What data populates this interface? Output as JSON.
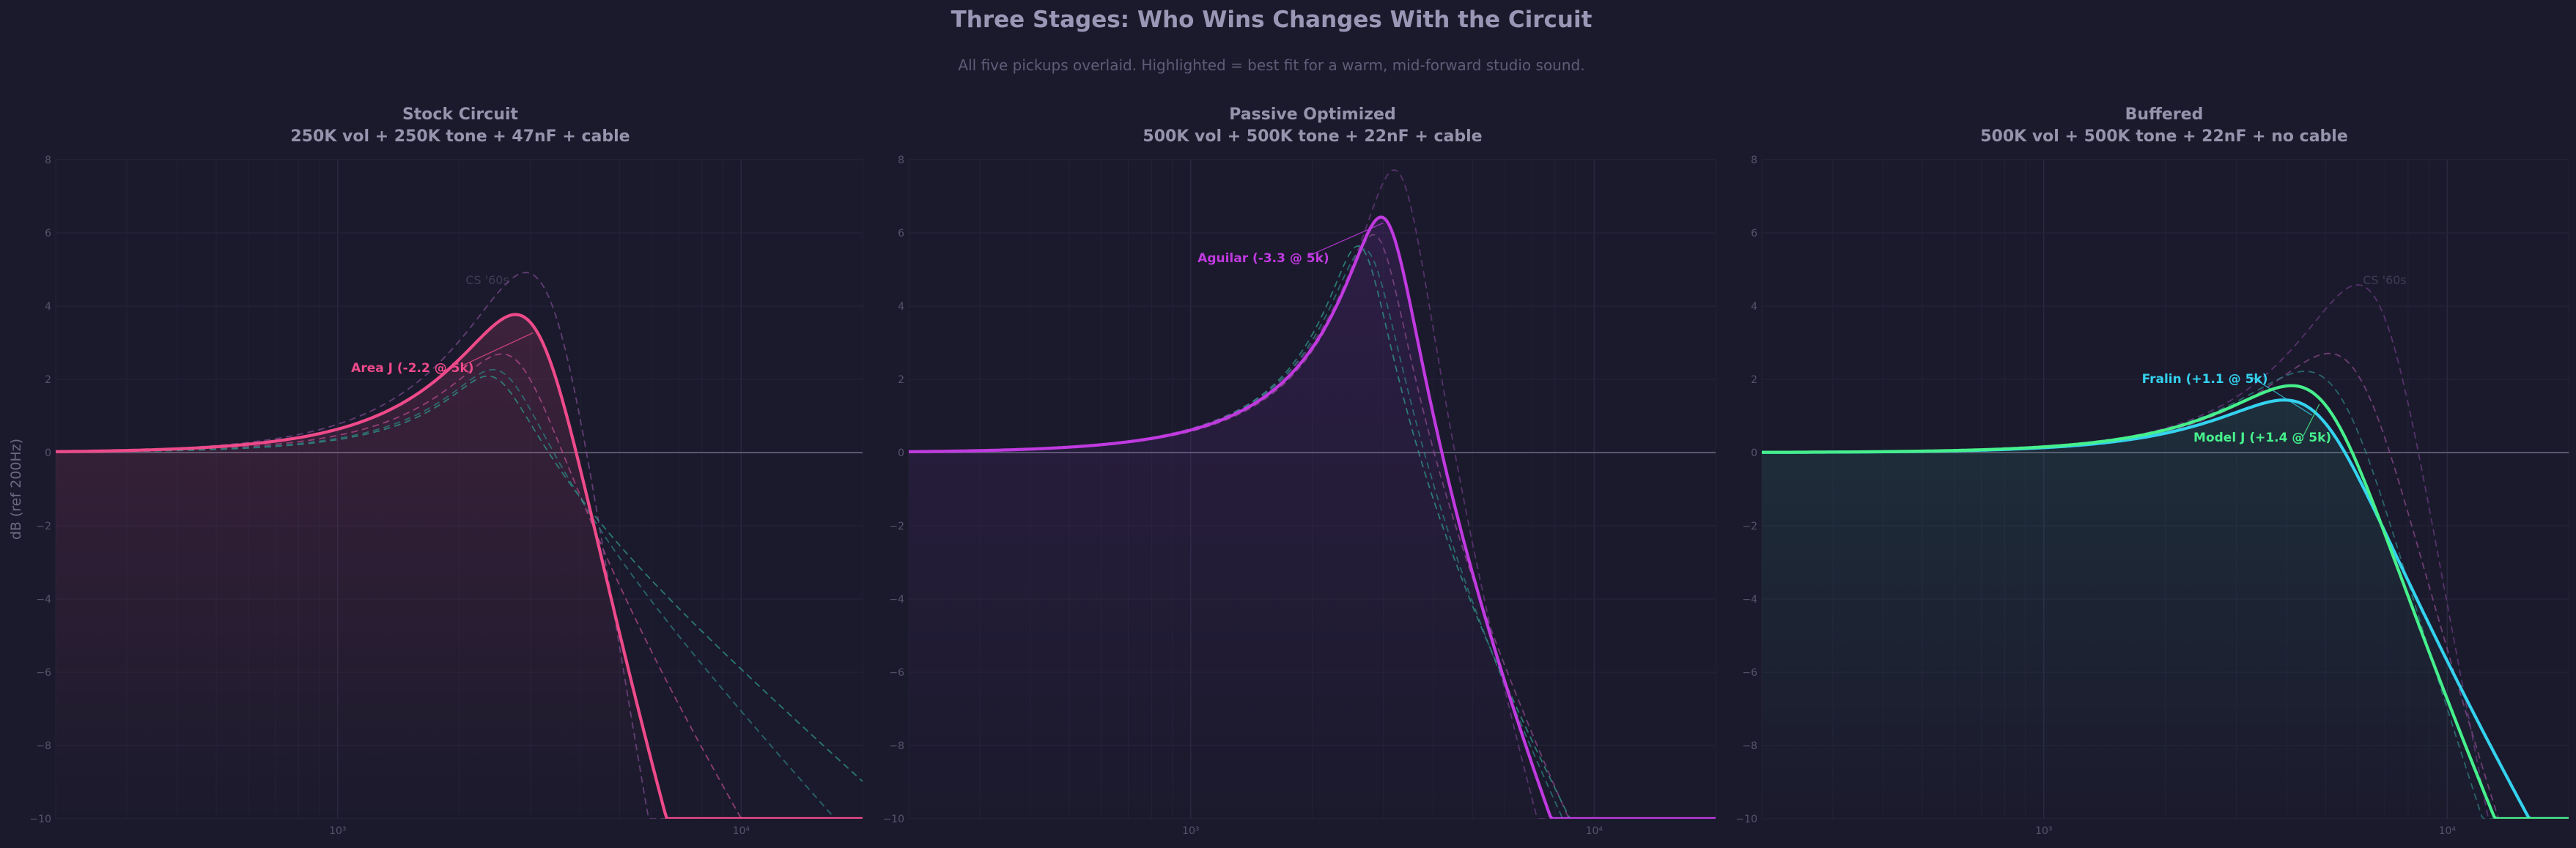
{
  "title": "Three Stages: Who Wins Changes With the Circuit",
  "subtitle": "All five pickups overlaid. Highlighted = best fit for a warm, mid-forward studio sound.",
  "ylabel": "dB (ref 200Hz)",
  "colors": {
    "background": "#1b1a2c",
    "grid": "#26253a",
    "zero_line": "#5a586e",
    "pink": "#ee4a8a",
    "purple": "#c03ae0",
    "cyan": "#34d2ee",
    "green": "#46f08c"
  },
  "chart_data": [
    {
      "type": "line",
      "title_line1": "Stock Circuit",
      "title_line2": "250K vol + 250K tone + 47nF + cable",
      "xscale": "log",
      "xlim": [
        200,
        20000
      ],
      "ylim": [
        -10,
        8
      ],
      "yticks": [
        8,
        6,
        4,
        2,
        0,
        -2,
        -4,
        -6,
        -8,
        -10
      ],
      "xtick_labels": [
        {
          "value": 1000,
          "label": "10³"
        },
        {
          "value": 10000,
          "label": "10⁴"
        }
      ],
      "grid": true,
      "fill_color": "#ee4a8a",
      "ghost_label": {
        "text": "CS '60s",
        "x": 2350,
        "y": 4.6
      },
      "series": [
        {
          "name": "Area J",
          "highlight": true,
          "color": "#ee4a8a",
          "peak_hz": 3100,
          "peak_db": 3.35,
          "q": 1.55,
          "dash": false,
          "annotation": {
            "text": "Area J (-2.2 @ 5k)",
            "x": 1080,
            "y": 2.2
          }
        },
        {
          "color": "#b64a8c",
          "peak_hz": 2750,
          "peak_db": 2.55,
          "q": 1.9,
          "dash": true
        },
        {
          "color": "#7a4a8c",
          "peak_hz": 3350,
          "peak_db": 4.2,
          "q": 1.45,
          "dash": true
        },
        {
          "color": "#2f9a8a",
          "peak_hz": 2450,
          "peak_db": 2.05,
          "q": 2.6,
          "dash": true
        },
        {
          "color": "#2c7f80",
          "peak_hz": 2550,
          "peak_db": 2.2,
          "q": 2.3,
          "dash": true
        }
      ]
    },
    {
      "type": "line",
      "title_line1": "Passive Optimized",
      "title_line2": "500K vol + 500K tone + 22nF + cable",
      "xscale": "log",
      "xlim": [
        200,
        20000
      ],
      "ylim": [
        -10,
        8
      ],
      "yticks": [
        8,
        6,
        4,
        2,
        0,
        -2,
        -4,
        -6,
        -8,
        -10
      ],
      "xtick_labels": [
        {
          "value": 1000,
          "label": "10³"
        },
        {
          "value": 10000,
          "label": "10⁴"
        }
      ],
      "grid": true,
      "fill_color": "#8a32c8",
      "series": [
        {
          "name": "Aguilar",
          "highlight": true,
          "color": "#c03ae0",
          "peak_hz": 3050,
          "peak_db": 6.35,
          "q": 3.0,
          "dash": false,
          "annotation": {
            "text": "Aguilar (-3.3 @ 5k)",
            "x": 1040,
            "y": 5.2
          }
        },
        {
          "color": "#8a4a8c",
          "peak_hz": 2900,
          "peak_db": 5.9,
          "q": 3.4,
          "dash": true
        },
        {
          "color": "#6a3a80",
          "peak_hz": 3300,
          "peak_db": 7.6,
          "q": 2.8,
          "dash": true
        },
        {
          "color": "#2f9a8a",
          "peak_hz": 2650,
          "peak_db": 5.6,
          "q": 3.6,
          "dash": true
        },
        {
          "color": "#2c7f80",
          "peak_hz": 2750,
          "peak_db": 5.5,
          "q": 3.2,
          "dash": true
        }
      ]
    },
    {
      "type": "line",
      "title_line1": "Buffered",
      "title_line2": "500K vol + 500K tone + 22nF + no cable",
      "xscale": "log",
      "xlim": [
        200,
        20000
      ],
      "ylim": [
        -10,
        8
      ],
      "yticks": [
        8,
        6,
        4,
        2,
        0,
        -2,
        -4,
        -6,
        -8,
        -10
      ],
      "xtick_labels": [
        {
          "value": 1000,
          "label": "10³"
        },
        {
          "value": 10000,
          "label": "10⁴"
        }
      ],
      "grid": true,
      "fill_color": "#2f9a8a",
      "ghost_label": {
        "text": "CS '60s",
        "x": 7000,
        "y": 4.6
      },
      "series": [
        {
          "name": "Fralin",
          "highlight": true,
          "color": "#34d2ee",
          "peak_hz": 4700,
          "peak_db": 1.1,
          "q": 1.3,
          "dash": false,
          "annotation": {
            "text": "Fralin (+1.1 @ 5k)",
            "x": 1750,
            "y": 1.9
          }
        },
        {
          "name": "Model J",
          "highlight": true,
          "color": "#46f08c",
          "peak_hz": 4900,
          "peak_db": 1.4,
          "q": 1.3,
          "dash": false,
          "annotation": {
            "text": "Model J (+1.4 @ 5k)",
            "x": 2350,
            "y": 0.3
          }
        },
        {
          "color": "#8a4a8c",
          "peak_hz": 5900,
          "peak_db": 2.25,
          "q": 1.4,
          "dash": true
        },
        {
          "color": "#6a3a80",
          "peak_hz": 6800,
          "peak_db": 4.0,
          "q": 1.5,
          "dash": true
        },
        {
          "color": "#2c7f80",
          "peak_hz": 5300,
          "peak_db": 1.7,
          "q": 1.3,
          "dash": true
        }
      ]
    }
  ]
}
